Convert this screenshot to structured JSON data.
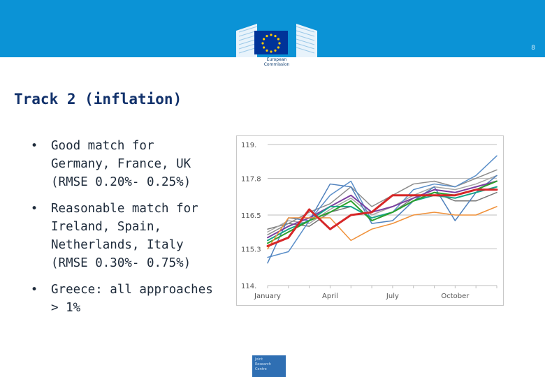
{
  "header": {
    "page_number": "8",
    "logo_text": [
      "European",
      "Commission"
    ]
  },
  "slide": {
    "title": "Track 2 (inflation)",
    "bullets": [
      [
        "Good match for",
        "Germany, France, UK",
        "(RMSE 0.20%- 0.25%)"
      ],
      [
        "Reasonable match for",
        "Ireland, Spain,",
        "Netherlands, Italy",
        "(RMSE 0.30%- 0.75%)"
      ],
      [
        "Greece: all approaches",
        "> 1%"
      ]
    ]
  },
  "footer": {
    "logo_text": [
      "Joint",
      "Research",
      "Centre"
    ]
  },
  "chart_data": {
    "type": "line",
    "x": [
      1,
      2,
      3,
      4,
      5,
      6,
      7,
      8,
      9,
      10,
      11,
      12
    ],
    "x_tick_labels": [
      {
        "x": 1,
        "label": "January"
      },
      {
        "x": 4,
        "label": "April"
      },
      {
        "x": 7,
        "label": "July"
      },
      {
        "x": 10,
        "label": "October"
      }
    ],
    "y_tick_labels": [
      "119.",
      "117.8",
      "116.5",
      "115.3",
      "114."
    ],
    "y_ticks": [
      119,
      117.8,
      116.5,
      115.3,
      114
    ],
    "ylim": [
      114,
      119
    ],
    "grid": "horizontal",
    "legend": "none",
    "series": [
      {
        "color": "#d62728",
        "width": 3,
        "values": [
          115.4,
          115.7,
          116.7,
          116.0,
          116.5,
          116.6,
          117.2,
          117.2,
          117.2,
          117.2,
          117.4,
          117.4
        ]
      },
      {
        "color": "#f0913a",
        "width": 1.5,
        "values": [
          115.3,
          116.4,
          116.4,
          116.4,
          115.6,
          116.0,
          116.2,
          116.5,
          116.6,
          116.5,
          116.5,
          116.8
        ]
      },
      {
        "color": "#2ca02c",
        "width": 2,
        "values": [
          115.5,
          115.9,
          116.3,
          116.6,
          117.0,
          116.3,
          116.6,
          117.0,
          117.3,
          117.2,
          117.4,
          117.7
        ]
      },
      {
        "color": "#17a589",
        "width": 2,
        "values": [
          115.6,
          116.0,
          116.3,
          116.8,
          116.8,
          116.4,
          116.6,
          117.0,
          117.2,
          117.1,
          117.3,
          117.5
        ]
      },
      {
        "color": "#7b3fa0",
        "width": 2,
        "values": [
          115.7,
          116.1,
          116.4,
          116.8,
          117.2,
          116.6,
          116.8,
          117.1,
          117.4,
          117.3,
          117.5,
          117.7
        ]
      },
      {
        "color": "#4f81bd",
        "width": 1.5,
        "values": [
          114.8,
          116.4,
          116.3,
          117.6,
          117.5,
          116.2,
          116.3,
          117.0,
          117.5,
          116.3,
          117.3,
          117.9
        ]
      },
      {
        "color": "#5b8fc9",
        "width": 1.5,
        "values": [
          115.0,
          115.2,
          116.3,
          117.2,
          117.7,
          116.3,
          116.6,
          117.4,
          117.6,
          117.5,
          117.9,
          118.6
        ]
      },
      {
        "color": "#8c8c8c",
        "width": 1.5,
        "values": [
          115.8,
          116.2,
          116.6,
          116.9,
          117.5,
          116.8,
          117.2,
          117.6,
          117.7,
          117.5,
          117.8,
          118.1
        ]
      },
      {
        "color": "#a6a6a6",
        "width": 1.5,
        "values": [
          115.9,
          116.3,
          116.2,
          116.7,
          117.1,
          116.5,
          116.8,
          117.2,
          117.5,
          117.4,
          117.6,
          117.9
        ]
      },
      {
        "color": "#767676",
        "width": 1.5,
        "values": [
          116.0,
          116.2,
          116.1,
          116.6,
          116.8,
          116.4,
          116.6,
          117.1,
          117.3,
          117.0,
          117.0,
          117.3
        ]
      }
    ]
  }
}
